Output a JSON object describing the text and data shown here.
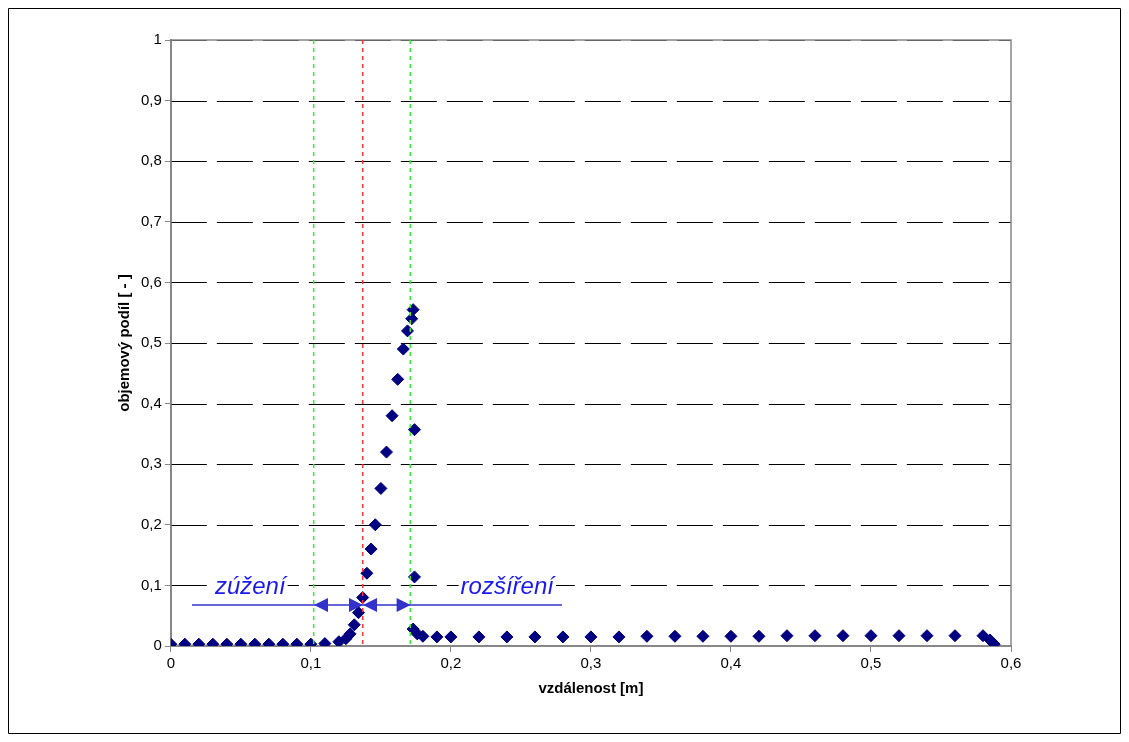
{
  "chart_data": {
    "type": "scatter",
    "xlabel": "vzdálenost [m]",
    "ylabel": "objemový podíl [ - ]",
    "series": [
      {
        "color": "#000080",
        "x": [
          0,
          0.01,
          0.02,
          0.03,
          0.04,
          0.05,
          0.06,
          0.07,
          0.08,
          0.09,
          0.1,
          0.11,
          0.12,
          0.125,
          0.128,
          0.131,
          0.134,
          0.137,
          0.14,
          0.143,
          0.146,
          0.15,
          0.154,
          0.158,
          0.162,
          0.166,
          0.169,
          0.172,
          0.173,
          0.174,
          0.174,
          0.173,
          0.176,
          0.18,
          0.19,
          0.2,
          0.22,
          0.24,
          0.26,
          0.28,
          0.3,
          0.32,
          0.34,
          0.36,
          0.38,
          0.4,
          0.42,
          0.44,
          0.46,
          0.48,
          0.5,
          0.52,
          0.54,
          0.56,
          0.58,
          0.585,
          0.588
        ],
        "values": [
          0.003,
          0.003,
          0.003,
          0.003,
          0.003,
          0.003,
          0.003,
          0.003,
          0.003,
          0.003,
          0.003,
          0.004,
          0.007,
          0.012,
          0.02,
          0.035,
          0.055,
          0.08,
          0.12,
          0.16,
          0.2,
          0.26,
          0.32,
          0.38,
          0.44,
          0.49,
          0.52,
          0.54,
          0.555,
          0.357,
          0.114,
          0.028,
          0.02,
          0.016,
          0.015,
          0.015,
          0.015,
          0.015,
          0.015,
          0.015,
          0.015,
          0.015,
          0.016,
          0.016,
          0.016,
          0.016,
          0.016,
          0.017,
          0.017,
          0.017,
          0.017,
          0.017,
          0.017,
          0.017,
          0.017,
          0.01,
          0.003
        ]
      }
    ],
    "marker": "diamond",
    "legend": false,
    "grid": "y",
    "xlim": [
      0,
      0.6
    ],
    "xticks": [
      0,
      {
        "value": 0.1,
        "label": "0,1"
      },
      {
        "value": 0.2,
        "label": "0,2"
      },
      {
        "value": 0.3,
        "label": "0,3"
      },
      {
        "value": 0.4,
        "label": "0,4"
      },
      {
        "value": 0.5,
        "label": "0,5"
      },
      {
        "value": 0.6,
        "label": "0,6"
      }
    ],
    "ylim": [
      0,
      1
    ],
    "yticks": [
      0,
      {
        "value": 0.1,
        "label": "0,1"
      },
      {
        "value": 0.2,
        "label": "0,2"
      },
      {
        "value": 0.3,
        "label": "0,3"
      },
      {
        "value": 0.4,
        "label": "0,4"
      },
      {
        "value": 0.5,
        "label": "0,5"
      },
      {
        "value": 0.6,
        "label": "0,6"
      },
      {
        "value": 0.7,
        "label": "0,7"
      },
      {
        "value": 0.8,
        "label": "0,8"
      },
      {
        "value": 0.9,
        "label": "0,9"
      },
      1
    ],
    "ref_lines": [
      {
        "axis": "x",
        "value": 0.102,
        "color": "#33ee33",
        "line_style": "dashed"
      },
      {
        "axis": "x",
        "value": 0.137,
        "color": "#ff3333",
        "line_style": "dashed"
      },
      {
        "axis": "x",
        "value": 0.171,
        "color": "#33ee33",
        "line_style": "dashed"
      }
    ],
    "annotations": [
      "zúžení",
      "rozšíření"
    ]
  }
}
